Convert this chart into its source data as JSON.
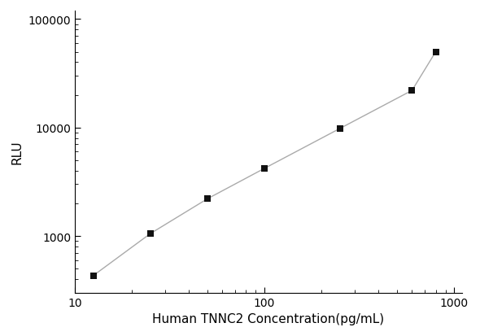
{
  "x_values": [
    12.5,
    25,
    50,
    100,
    250,
    600,
    800
  ],
  "y_values": [
    430,
    1050,
    2200,
    4200,
    9800,
    22000,
    50000
  ],
  "xlabel": "Human TNNC2 Concentration(pg/mL)",
  "ylabel": "RLU",
  "xlim": [
    10,
    1100
  ],
  "ylim": [
    300,
    120000
  ],
  "xticks": [
    10,
    100,
    1000
  ],
  "yticks": [
    1000,
    10000,
    100000
  ],
  "line_color": "#aaaaaa",
  "marker_color": "#111111",
  "marker": "s",
  "marker_size": 6,
  "line_width": 1.0,
  "background_color": "#ffffff",
  "xlabel_fontsize": 11,
  "ylabel_fontsize": 11,
  "tick_fontsize": 10
}
